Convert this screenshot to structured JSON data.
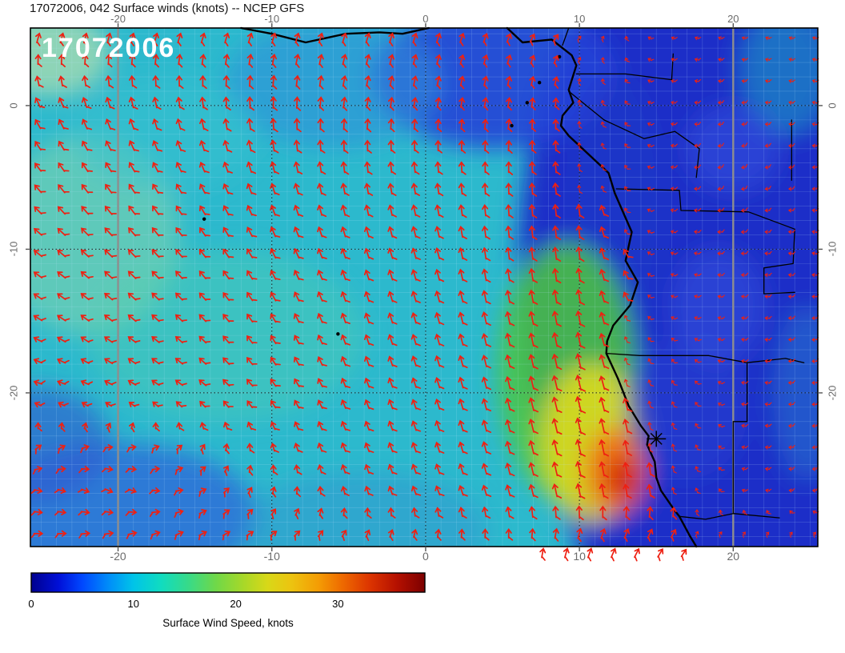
{
  "title": "17072006, 042 Surface winds (knots) -- NCEP GFS",
  "axes": {
    "lon_tick_labels": [
      "-20",
      "-10",
      "0",
      "10",
      "20"
    ],
    "lat_tick_labels": [
      "0",
      "-10",
      "-20"
    ]
  },
  "chart_data": {
    "type": "heatmap",
    "subtype": "surface-wind-map-with-barbs",
    "title": "17072006, 042 Surface winds (knots) -- NCEP GFS",
    "run_date": "17072006",
    "forecast_hour": "042",
    "variable": "Surface winds (knots)",
    "model": "NCEP GFS",
    "lon_range": [
      -25.7,
      25.5
    ],
    "lat_range": [
      -30.7,
      5.4
    ],
    "lon_ticks": [
      -20,
      -10,
      0,
      10,
      20
    ],
    "lat_ticks": [
      0,
      -10,
      -20
    ],
    "grid_minor_step_deg": 1,
    "grid_major_step_deg": 10,
    "base_color": "#2cb9cd",
    "barb_color": "#ee2012",
    "colorbar": {
      "label": "Surface Wind Speed, knots",
      "min": 0,
      "max": 38.5,
      "ticks": [
        0,
        10,
        20,
        30
      ],
      "tick_labels": [
        "0",
        "10",
        "20",
        "30"
      ],
      "stops": [
        [
          0.0,
          "#00008e"
        ],
        [
          0.07,
          "#0010d8"
        ],
        [
          0.13,
          "#0048ff"
        ],
        [
          0.2,
          "#0090f8"
        ],
        [
          0.26,
          "#00c4e8"
        ],
        [
          0.33,
          "#10dcc0"
        ],
        [
          0.4,
          "#38da88"
        ],
        [
          0.47,
          "#70d848"
        ],
        [
          0.54,
          "#a8d828"
        ],
        [
          0.6,
          "#d8d818"
        ],
        [
          0.66,
          "#ecc410"
        ],
        [
          0.73,
          "#f49c04"
        ],
        [
          0.79,
          "#ee6a00"
        ],
        [
          0.86,
          "#dc3400"
        ],
        [
          0.93,
          "#b41000"
        ],
        [
          1.0,
          "#7c0000"
        ]
      ]
    },
    "speed_blobs": [
      [
        19,
        -12,
        13,
        26,
        "#1b2ec8",
        1
      ],
      [
        4.5,
        2,
        8,
        5,
        "#2643d6",
        0.9
      ],
      [
        12.5,
        -7,
        3,
        9,
        "#2036c8",
        0.8
      ],
      [
        -6,
        1.5,
        7,
        4.5,
        "#2e8fd8",
        0.6
      ],
      [
        -24.5,
        3.6,
        4,
        3,
        "#cfe6a8",
        0.6
      ],
      [
        -22,
        -9,
        6,
        7,
        "#8fd9a8",
        0.5
      ],
      [
        -13,
        -16,
        9,
        6,
        "#56cfae",
        0.4
      ],
      [
        -17,
        -2,
        6,
        4,
        "#35c2cf",
        0.5
      ],
      [
        9.2,
        -18.5,
        4.5,
        9,
        "#4cc83e",
        0.85
      ],
      [
        10.8,
        -23.5,
        3.4,
        5.5,
        "#ddda1e",
        0.9
      ],
      [
        12.3,
        -25.4,
        2,
        3,
        "#f07414",
        0.95
      ],
      [
        12.8,
        -25.9,
        1.1,
        1.6,
        "#cf1c0a",
        0.95
      ],
      [
        -20,
        -28.5,
        9,
        5,
        "#2b66d8",
        0.75
      ],
      [
        -25.5,
        -23.5,
        5,
        4,
        "#2f57cf",
        0.6
      ],
      [
        -4,
        -29.5,
        8,
        4,
        "#2f93cf",
        0.5
      ],
      [
        23.5,
        2.5,
        3,
        4.5,
        "#23a8c4",
        0.55
      ],
      [
        24.8,
        -20,
        2.2,
        6,
        "#2e7ed0",
        0.5
      ],
      [
        17,
        -21,
        4,
        5,
        "#2a3fd0",
        0.6
      ],
      [
        20,
        -3,
        3,
        3,
        "#3a55e0",
        0.55
      ],
      [
        19,
        -14,
        3,
        4,
        "#3a55e0",
        0.5
      ]
    ],
    "wind_grid": {
      "lons": [
        -25,
        -20,
        -15,
        -10,
        -5,
        0,
        5,
        10,
        15,
        20,
        25
      ],
      "lats": [
        5,
        0,
        -5,
        -10,
        -15,
        -20,
        -24,
        -27,
        -30
      ],
      "u": [
        [
          2,
          2,
          2,
          2,
          2,
          2,
          2,
          3,
          -2,
          -2,
          -2
        ],
        [
          -3,
          -2,
          -1,
          0,
          1,
          1,
          1,
          0,
          -3,
          -3,
          -3
        ],
        [
          -4,
          -4,
          -3,
          -2,
          -1,
          -1,
          0,
          -1,
          -4,
          -4,
          -3
        ],
        [
          -5,
          -5,
          -4,
          -3,
          -2,
          -2,
          -1,
          -1,
          -4,
          -5,
          -4
        ],
        [
          -5,
          -5,
          -4,
          -3,
          -2,
          -2,
          -2,
          -2,
          -3,
          -4,
          -4
        ],
        [
          -4,
          -4,
          -4,
          -3,
          -2,
          -2,
          -2,
          -3,
          -2,
          -4,
          -4
        ],
        [
          3,
          4,
          2,
          -1,
          -2,
          -2,
          -2,
          -3,
          -1,
          -3,
          -3
        ],
        [
          4,
          4,
          3,
          1,
          -1,
          -2,
          -2,
          -2,
          -1,
          -2,
          -2
        ],
        [
          5,
          5,
          4,
          3,
          2,
          1,
          0,
          2,
          3,
          2,
          1
        ]
      ],
      "v": [
        [
          6,
          6,
          6,
          6,
          6,
          6,
          5,
          3,
          1,
          1,
          1
        ],
        [
          6,
          7,
          7,
          8,
          7,
          6,
          6,
          5,
          1,
          0,
          1
        ],
        [
          5,
          6,
          6,
          7,
          7,
          7,
          7,
          8,
          1,
          -1,
          0
        ],
        [
          4,
          5,
          5,
          6,
          6,
          7,
          8,
          9,
          2,
          0,
          1
        ],
        [
          3,
          4,
          4,
          5,
          6,
          7,
          9,
          11,
          2,
          1,
          0
        ],
        [
          1,
          2,
          3,
          4,
          5,
          6,
          8,
          12,
          6,
          1,
          0
        ],
        [
          2,
          0,
          2,
          4,
          5,
          6,
          8,
          13,
          9,
          1,
          0
        ],
        [
          -1,
          -2,
          1,
          3,
          4,
          5,
          7,
          10,
          8,
          1,
          0
        ],
        [
          0,
          1,
          2,
          2,
          3,
          4,
          5,
          6,
          5,
          2,
          1
        ]
      ]
    },
    "coastline": [
      [
        [
          -12.0,
          5.4
        ],
        [
          -10.0,
          5.0
        ],
        [
          -7.8,
          4.4
        ],
        [
          -5.2,
          5.0
        ],
        [
          -3.0,
          5.1
        ],
        [
          -1.5,
          5.0
        ],
        [
          0.2,
          5.4
        ]
      ],
      [
        [
          5.3,
          5.4
        ],
        [
          6.3,
          4.4
        ],
        [
          8.2,
          4.6
        ],
        [
          8.9,
          4.0
        ],
        [
          9.5,
          3.5
        ],
        [
          9.8,
          2.8
        ],
        [
          9.3,
          1.1
        ],
        [
          9.6,
          0.2
        ],
        [
          8.9,
          -0.7
        ],
        [
          8.8,
          -1.4
        ],
        [
          9.3,
          -2.1
        ],
        [
          11.1,
          -3.9
        ],
        [
          11.9,
          -4.7
        ],
        [
          12.3,
          -6.1
        ],
        [
          13.4,
          -8.8
        ],
        [
          13.0,
          -10.8
        ],
        [
          13.8,
          -12.3
        ],
        [
          13.3,
          -13.9
        ],
        [
          12.2,
          -15.3
        ],
        [
          11.8,
          -16.4
        ],
        [
          11.75,
          -17.25
        ],
        [
          12.5,
          -19.0
        ],
        [
          13.2,
          -20.9
        ],
        [
          14.0,
          -22.3
        ],
        [
          14.5,
          -23.0
        ],
        [
          14.4,
          -23.6
        ],
        [
          14.9,
          -24.8
        ],
        [
          15.0,
          -25.9
        ],
        [
          15.3,
          -26.8
        ],
        [
          16.2,
          -28.2
        ],
        [
          16.5,
          -28.6
        ],
        [
          17.2,
          -30.0
        ],
        [
          17.6,
          -30.7
        ]
      ]
    ],
    "borders": [
      [
        [
          9.8,
          2.2
        ],
        [
          13.0,
          2.2
        ],
        [
          16.0,
          1.8
        ],
        [
          16.1,
          3.6
        ]
      ],
      [
        [
          8.9,
          4.2
        ],
        [
          9.3,
          5.4
        ]
      ],
      [
        [
          9.3,
          1.0
        ],
        [
          11.6,
          -1.0
        ],
        [
          14.2,
          -2.3
        ],
        [
          16.2,
          -1.8
        ],
        [
          17.8,
          -3.0
        ],
        [
          17.6,
          -5.0
        ]
      ],
      [
        [
          12.4,
          -5.8
        ],
        [
          16.5,
          -5.9
        ],
        [
          16.6,
          -7.3
        ],
        [
          21.0,
          -7.4
        ],
        [
          24.0,
          -8.6
        ],
        [
          23.9,
          -11.0
        ],
        [
          22.0,
          -11.3
        ],
        [
          22.0,
          -13.1
        ],
        [
          24.0,
          -13.0
        ]
      ],
      [
        [
          11.75,
          -17.25
        ],
        [
          13.9,
          -17.4
        ],
        [
          18.4,
          -17.4
        ],
        [
          20.9,
          -17.9
        ],
        [
          23.4,
          -17.6
        ],
        [
          24.6,
          -17.9
        ]
      ],
      [
        [
          20.9,
          -17.9
        ],
        [
          20.9,
          -22.0
        ],
        [
          20.0,
          -22.0
        ],
        [
          20.0,
          -28.4
        ]
      ],
      [
        [
          16.5,
          -28.6
        ],
        [
          18.2,
          -28.8
        ],
        [
          20.0,
          -28.4
        ],
        [
          23.0,
          -28.7
        ]
      ],
      [
        [
          23.8,
          -1.0
        ],
        [
          23.8,
          -5.2
        ]
      ]
    ],
    "islands": [
      [
        -14.4,
        -7.9
      ],
      [
        -5.7,
        -15.9
      ],
      [
        6.6,
        0.2
      ],
      [
        7.4,
        1.6
      ],
      [
        5.6,
        -1.4
      ],
      [
        8.7,
        3.4
      ]
    ],
    "star": {
      "lon": 15.0,
      "lat": -23.2
    }
  }
}
